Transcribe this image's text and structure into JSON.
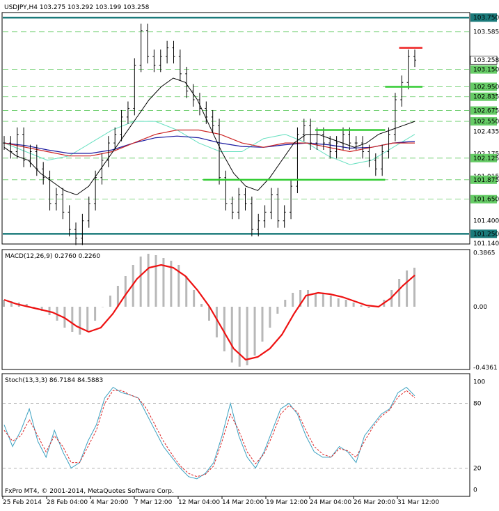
{
  "header": {
    "symbol": "USDJPY,H4",
    "ohlc": "103.275 103.292 103.199 103.258"
  },
  "price_panel": {
    "current_price": "103.258",
    "axis_labels": [
      "103.750",
      "103.585",
      "103.258",
      "103.150",
      "102.950",
      "102.835",
      "102.675",
      "102.550",
      "102.435",
      "102.175",
      "102.125",
      "101.915",
      "101.875",
      "101.650",
      "101.400",
      "101.250",
      "101.140"
    ],
    "highlighted_levels": [
      "103.750",
      "103.150",
      "102.950",
      "102.835",
      "102.675",
      "102.550",
      "102.125",
      "101.875",
      "101.650",
      "101.250"
    ]
  },
  "macd_panel": {
    "title": "MACD(12,26,9) 0.2760 0.2260",
    "axis_labels": [
      "0.3865",
      "0.00",
      "-0.4361"
    ]
  },
  "stoch_panel": {
    "title": "Stoch(13,3,3) 86.7184 84.5883",
    "axis_labels": [
      "100",
      "80",
      "20",
      "0"
    ],
    "copyright": "FxPro MT4, © 2001-2014, MetaQuotes Software Corp."
  },
  "time_axis": {
    "labels": [
      "25 Feb 2014",
      "28 Feb 04:00",
      "4 Mar 20:00",
      "7 Mar 12:00",
      "12 Mar 04:00",
      "14 Mar 20:00",
      "19 Mar 12:00",
      "24 Mar 04:00",
      "26 Mar 20:00",
      "31 Mar 12:00"
    ]
  },
  "colors": {
    "support_resistance": "#1a7a7a",
    "green_level": "#33cc33",
    "red_level": "#ee2222",
    "macd_hist": "#b8b8b8",
    "macd_signal": "#ee1111",
    "ma_black": "#000000",
    "ma_red": "#cc2222",
    "ma_blue": "#1a1aa0",
    "ma_aqua": "#66e0c0",
    "stoch_main": "#3aa0c0",
    "stoch_signal": "#dd2222"
  },
  "chart_data": {
    "type": "line",
    "title": "USDJPY,H4",
    "ylim": [
      101.14,
      103.8
    ],
    "key_levels": [
      103.75,
      101.25
    ],
    "dashed_levels": [
      103.585,
      103.15,
      102.95,
      102.835,
      102.675,
      102.55,
      102.125,
      101.875,
      101.65
    ],
    "segments": [
      {
        "color": "green",
        "y": 101.875,
        "x0": 0.43,
        "x1": 0.82
      },
      {
        "color": "green",
        "y": 102.45,
        "x0": 0.67,
        "x1": 0.82
      },
      {
        "color": "green",
        "y": 102.95,
        "x0": 0.82,
        "x1": 0.9
      },
      {
        "color": "red",
        "y": 103.4,
        "x0": 0.85,
        "x1": 0.9
      }
    ],
    "close": [
      102.3,
      102.2,
      102.4,
      102.1,
      102.2,
      102.0,
      101.9,
      101.6,
      101.7,
      101.5,
      101.3,
      101.2,
      101.4,
      101.6,
      101.9,
      102.1,
      102.3,
      102.4,
      102.6,
      102.7,
      103.2,
      103.6,
      103.3,
      103.2,
      103.3,
      103.4,
      103.3,
      103.1,
      102.9,
      102.8,
      102.7,
      102.6,
      102.5,
      101.9,
      101.6,
      101.5,
      101.7,
      101.6,
      101.3,
      101.4,
      101.5,
      101.7,
      101.4,
      101.5,
      101.8,
      102.4,
      102.5,
      102.3,
      102.4,
      102.3,
      102.2,
      102.3,
      102.4,
      102.3,
      102.3,
      102.2,
      102.1,
      102.0,
      102.2,
      102.4,
      102.8,
      103.0,
      103.3,
      103.258
    ],
    "ma_black": [
      102.25,
      102.15,
      102.1,
      101.95,
      101.85,
      101.75,
      101.7,
      101.8,
      102.0,
      102.2,
      102.4,
      102.6,
      102.8,
      102.95,
      103.05,
      103.0,
      102.8,
      102.5,
      102.2,
      101.95,
      101.8,
      101.75,
      101.9,
      102.1,
      102.3,
      102.4,
      102.4,
      102.35,
      102.3,
      102.25,
      102.3,
      102.4,
      102.45,
      102.5,
      102.55
    ],
    "ma_red": [
      102.3,
      102.25,
      102.2,
      102.15,
      102.15,
      102.2,
      102.3,
      102.4,
      102.45,
      102.45,
      102.4,
      102.3,
      102.25,
      102.3,
      102.3,
      102.25,
      102.2,
      102.25,
      102.3,
      102.3
    ],
    "ma_blue": [
      102.3,
      102.27,
      102.22,
      102.18,
      102.18,
      102.22,
      102.3,
      102.36,
      102.38,
      102.36,
      102.3,
      102.26,
      102.25,
      102.28,
      102.3,
      102.28,
      102.24,
      102.25,
      102.3,
      102.32
    ],
    "ma_aqua": [
      102.3,
      102.2,
      102.1,
      102.15,
      102.3,
      102.45,
      102.55,
      102.55,
      102.45,
      102.3,
      102.2,
      102.2,
      102.35,
      102.4,
      102.3,
      102.15,
      102.05,
      102.1,
      102.25,
      102.4
    ],
    "macd_hist": [
      0.05,
      0.04,
      0.03,
      0.02,
      0.0,
      -0.03,
      -0.06,
      -0.1,
      -0.15,
      -0.18,
      -0.2,
      -0.17,
      -0.1,
      0.0,
      0.08,
      0.15,
      0.22,
      0.3,
      0.36,
      0.38,
      0.37,
      0.35,
      0.33,
      0.3,
      0.22,
      0.12,
      0.02,
      -0.1,
      -0.22,
      -0.32,
      -0.4,
      -0.43,
      -0.42,
      -0.35,
      -0.25,
      -0.15,
      -0.05,
      0.05,
      0.1,
      0.12,
      0.12,
      0.1,
      0.1,
      0.08,
      0.06,
      0.05,
      0.03,
      0.01,
      -0.01,
      0.0,
      0.05,
      0.12,
      0.2,
      0.26,
      0.28
    ],
    "macd_signal": [
      0.05,
      0.02,
      0.0,
      -0.02,
      -0.04,
      -0.08,
      -0.14,
      -0.18,
      -0.15,
      -0.05,
      0.08,
      0.2,
      0.28,
      0.3,
      0.28,
      0.22,
      0.12,
      0.0,
      -0.15,
      -0.3,
      -0.38,
      -0.36,
      -0.3,
      -0.2,
      -0.05,
      0.08,
      0.1,
      0.09,
      0.07,
      0.04,
      0.01,
      0.0,
      0.06,
      0.15,
      0.226
    ],
    "stoch_main": [
      60,
      40,
      55,
      75,
      45,
      30,
      55,
      35,
      20,
      25,
      45,
      60,
      85,
      95,
      90,
      88,
      85,
      70,
      55,
      40,
      30,
      20,
      12,
      10,
      15,
      25,
      50,
      80,
      50,
      30,
      20,
      35,
      55,
      75,
      80,
      70,
      50,
      35,
      30,
      30,
      40,
      35,
      25,
      50,
      60,
      70,
      75,
      90,
      95,
      87
    ],
    "stoch_signal": [
      55,
      45,
      50,
      65,
      50,
      35,
      50,
      40,
      25,
      25,
      40,
      55,
      80,
      92,
      92,
      88,
      85,
      75,
      60,
      45,
      33,
      22,
      15,
      12,
      14,
      22,
      45,
      70,
      55,
      35,
      24,
      33,
      50,
      70,
      78,
      72,
      55,
      40,
      33,
      30,
      38,
      36,
      30,
      45,
      58,
      68,
      74,
      86,
      92,
      85
    ]
  }
}
